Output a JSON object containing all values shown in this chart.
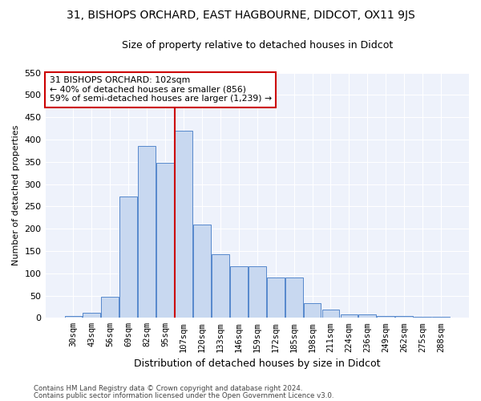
{
  "title": "31, BISHOPS ORCHARD, EAST HAGBOURNE, DIDCOT, OX11 9JS",
  "subtitle": "Size of property relative to detached houses in Didcot",
  "xlabel": "Distribution of detached houses by size in Didcot",
  "ylabel": "Number of detached properties",
  "categories": [
    "30sqm",
    "43sqm",
    "56sqm",
    "69sqm",
    "82sqm",
    "95sqm",
    "107sqm",
    "120sqm",
    "133sqm",
    "146sqm",
    "159sqm",
    "172sqm",
    "185sqm",
    "198sqm",
    "211sqm",
    "224sqm",
    "236sqm",
    "249sqm",
    "262sqm",
    "275sqm",
    "288sqm"
  ],
  "values": [
    5,
    12,
    48,
    272,
    385,
    348,
    420,
    210,
    143,
    115,
    115,
    90,
    90,
    33,
    18,
    8,
    8,
    4,
    4,
    3,
    3
  ],
  "bar_color": "#c8d8f0",
  "bar_edge_color": "#5588cc",
  "vline_bin_index": 6,
  "vline_color": "#cc0000",
  "box_color": "#cc0000",
  "marker_label": "31 BISHOPS ORCHARD: 102sqm",
  "annotation_line1": "← 40% of detached houses are smaller (856)",
  "annotation_line2": "59% of semi-detached houses are larger (1,239) →",
  "ylim": [
    0,
    550
  ],
  "yticks": [
    0,
    50,
    100,
    150,
    200,
    250,
    300,
    350,
    400,
    450,
    500,
    550
  ],
  "footnote1": "Contains HM Land Registry data © Crown copyright and database right 2024.",
  "footnote2": "Contains public sector information licensed under the Open Government Licence v3.0.",
  "bg_color": "#eef2fb",
  "title_fontsize": 10,
  "subtitle_fontsize": 9
}
